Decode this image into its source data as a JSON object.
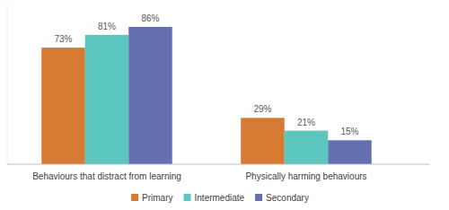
{
  "chart_data": {
    "type": "bar",
    "categories": [
      "Behaviours that distract from learning",
      "Physically harming behaviours"
    ],
    "series": [
      {
        "name": "Primary",
        "color": "#d77a34",
        "values": [
          73,
          29
        ],
        "value_labels": [
          "73%",
          "29%"
        ]
      },
      {
        "name": "Intermediate",
        "color": "#5bc7be",
        "values": [
          81,
          21
        ],
        "value_labels": [
          "81%",
          "21%"
        ]
      },
      {
        "name": "Secondary",
        "color": "#6470b0",
        "values": [
          86,
          15
        ],
        "value_labels": [
          "86%",
          "15%"
        ]
      }
    ],
    "ylim": [
      0,
      100
    ],
    "tick_labels": false,
    "data_labels": true,
    "legend": "bottom"
  }
}
